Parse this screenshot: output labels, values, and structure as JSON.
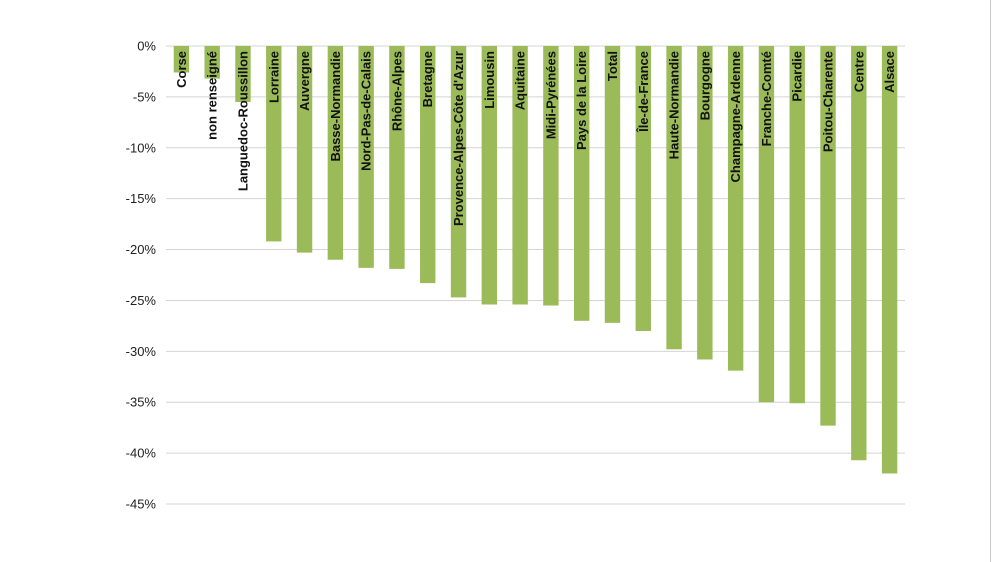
{
  "chart_data": {
    "type": "bar",
    "orientation": "vertical",
    "bar_color": "#9bbb59",
    "grid": true,
    "ylim": [
      -45,
      0
    ],
    "yticks": [
      0,
      -5,
      -10,
      -15,
      -20,
      -25,
      -30,
      -35,
      -40,
      -45
    ],
    "ytick_labels": [
      "0%",
      "-5%",
      "-10%",
      "-15%",
      "-20%",
      "-25%",
      "-30%",
      "-35%",
      "-40%",
      "-45%"
    ],
    "categories": [
      "Corse",
      "non renseigné",
      "Languedoc-Roussillon",
      "Lorraine",
      "Auvergne",
      "Basse-Normandie",
      "Nord-Pas-de-Calais",
      "Rhône-Alpes",
      "Bretagne",
      "Provence-Alpes-Côte d'Azur",
      "Limousin",
      "Aquitaine",
      "Midi-Pyrénées",
      "Pays de la Loire",
      "Total",
      "Île-de-France",
      "Haute-Normandie",
      "Bourgogne",
      "Champagne-Ardenne",
      "Franche-Comté",
      "Picardie",
      "Poitou-Charente",
      "Centre",
      "Alsace"
    ],
    "values": [
      -2.6,
      -3.2,
      -5.5,
      -19.2,
      -20.3,
      -21.0,
      -21.8,
      -21.9,
      -23.3,
      -24.7,
      -25.4,
      -25.4,
      -25.5,
      -27.0,
      -27.2,
      -28.0,
      -29.8,
      -30.8,
      -31.9,
      -35.0,
      -35.1,
      -37.3,
      -40.7,
      -42.0
    ]
  }
}
